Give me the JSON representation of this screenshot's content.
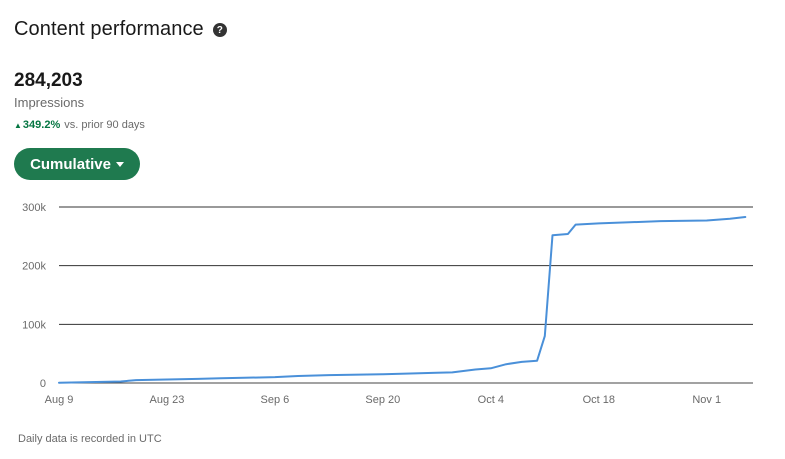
{
  "header": {
    "title": "Content performance",
    "help_icon": "question-circle-icon"
  },
  "metric": {
    "value": "284,203",
    "label": "Impressions",
    "change_percent": "349.2%",
    "change_suffix": "vs. prior 90 days",
    "change_direction": "up",
    "change_color": "#057642"
  },
  "dropdown": {
    "selected": "Cumulative"
  },
  "colors": {
    "accent": "#1f7a4f",
    "line": "#4a90d9"
  },
  "chart_data": {
    "type": "line",
    "title": "",
    "xlabel": "",
    "ylabel": "",
    "ylim": [
      0,
      300000
    ],
    "y_ticks": [
      0,
      100000,
      200000,
      300000
    ],
    "y_tick_labels": [
      "0",
      "100k",
      "200k",
      "300k"
    ],
    "x_ticks": [
      "Aug 9",
      "Aug 23",
      "Sep 6",
      "Sep 20",
      "Oct 4",
      "Oct 18",
      "Nov 1"
    ],
    "grid": true,
    "series": [
      {
        "x": [
          "Aug 9",
          "Aug 13",
          "Aug 17",
          "Aug 19",
          "Aug 23",
          "Aug 27",
          "Aug 30",
          "Sep 2",
          "Sep 6",
          "Sep 9",
          "Sep 13",
          "Sep 16",
          "Sep 20",
          "Sep 23",
          "Sep 27",
          "Sep 29",
          "Oct 2",
          "Oct 4",
          "Oct 6",
          "Oct 8",
          "Oct 10",
          "Oct 11",
          "Oct 12",
          "Oct 14",
          "Oct 15",
          "Oct 18",
          "Oct 22",
          "Oct 26",
          "Nov 1",
          "Nov 4",
          "Nov 6"
        ],
        "values": [
          500,
          1500,
          2500,
          5000,
          6000,
          7000,
          8000,
          8800,
          10000,
          12000,
          13500,
          14000,
          15000,
          16000,
          17500,
          18000,
          23000,
          25000,
          32000,
          36000,
          38000,
          80000,
          252000,
          254000,
          270000,
          272000,
          274000,
          276000,
          277000,
          280000,
          283000
        ]
      }
    ]
  },
  "footnote": "Daily data is recorded in UTC"
}
